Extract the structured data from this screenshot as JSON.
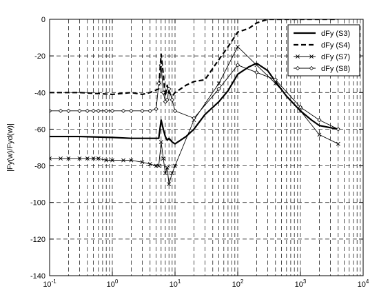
{
  "chart_data": {
    "type": "line",
    "title": "",
    "xlabel": "",
    "ylabel": "|Fy(w)/Fyd(w)|",
    "xscale": "log",
    "xlim": [
      0.1,
      10000
    ],
    "ylim": [
      -140,
      0
    ],
    "grid": true,
    "legend_position": "top-right",
    "x_tick_labels": [
      "10-1",
      "100",
      "101",
      "102",
      "103",
      "104"
    ],
    "y_tick_labels": [
      "0",
      "-20",
      "-40",
      "-60",
      "-80",
      "-100",
      "-120",
      "-140"
    ],
    "series": [
      {
        "name": "dFy (S3)",
        "style": "solid-thick",
        "marker": "none",
        "color": "#000000",
        "x": [
          0.1,
          0.3,
          1,
          2,
          4,
          5.5,
          6,
          6.5,
          7,
          7.5,
          8,
          9,
          10,
          15,
          20,
          30,
          50,
          70,
          100,
          150,
          200,
          300,
          400,
          600,
          1000,
          1500,
          2000,
          4000
        ],
        "y": [
          -64,
          -64,
          -64.5,
          -65,
          -65,
          -65,
          -55,
          -60,
          -64,
          -66,
          -65,
          -67,
          -68,
          -64,
          -60,
          -52,
          -45,
          -39,
          -30,
          -26,
          -24,
          -28,
          -34,
          -42,
          -50,
          -55,
          -58,
          -60
        ]
      },
      {
        "name": "dFy (S4)",
        "style": "dashed-thick",
        "marker": "none",
        "color": "#000000",
        "x": [
          0.1,
          0.3,
          1,
          2,
          3,
          4,
          5.5,
          6,
          6.5,
          7,
          7.5,
          8,
          9,
          10,
          15,
          20,
          30,
          50,
          70,
          100,
          150,
          200,
          300,
          500,
          700,
          1000,
          2000,
          4000
        ],
        "y": [
          -40,
          -40,
          -41,
          -40,
          -41,
          -40,
          -38,
          -19,
          -30,
          -42,
          -36,
          -40,
          -42,
          -40,
          -36,
          -34,
          -33,
          -22,
          -15,
          -7,
          -5,
          -2,
          0,
          0,
          0,
          0,
          0,
          0
        ]
      },
      {
        "name": "dFy (S7)",
        "style": "solid-thin",
        "marker": "x",
        "color": "#000000",
        "x": [
          0.1,
          0.15,
          0.2,
          0.3,
          0.4,
          0.5,
          0.6,
          0.8,
          1,
          1.5,
          2,
          3,
          4,
          5,
          5.5,
          6,
          6.5,
          7,
          7.5,
          8,
          9,
          10,
          20,
          50,
          100,
          200,
          400,
          1000,
          2000,
          4000
        ],
        "y": [
          -76,
          -76,
          -76,
          -76,
          -76,
          -76,
          -76,
          -77,
          -77,
          -77,
          -77,
          -78,
          -79,
          -80,
          -80,
          -67,
          -76,
          -84,
          -81,
          -90,
          -84,
          -80,
          -55,
          -35,
          -15,
          -25,
          -35,
          -50,
          -63,
          -68
        ]
      },
      {
        "name": "dFy (S8)",
        "style": "solid-thin",
        "marker": "diamond",
        "color": "#000000",
        "x": [
          0.1,
          0.15,
          0.2,
          0.3,
          0.4,
          0.5,
          0.6,
          0.8,
          1,
          1.5,
          2,
          3,
          4,
          5,
          5.5,
          6,
          6.5,
          7,
          7.5,
          8,
          9,
          10,
          20,
          50,
          100,
          200,
          400,
          1000,
          2000,
          4000
        ],
        "y": [
          -50,
          -50,
          -50,
          -50,
          -50,
          -50,
          -50,
          -50,
          -50,
          -50,
          -50,
          -50,
          -50,
          -49,
          -35,
          -25,
          -40,
          -45,
          -44,
          -38,
          -44,
          -50,
          -54,
          -38,
          -25,
          -29,
          -33,
          -48,
          -55,
          -60
        ]
      }
    ]
  }
}
